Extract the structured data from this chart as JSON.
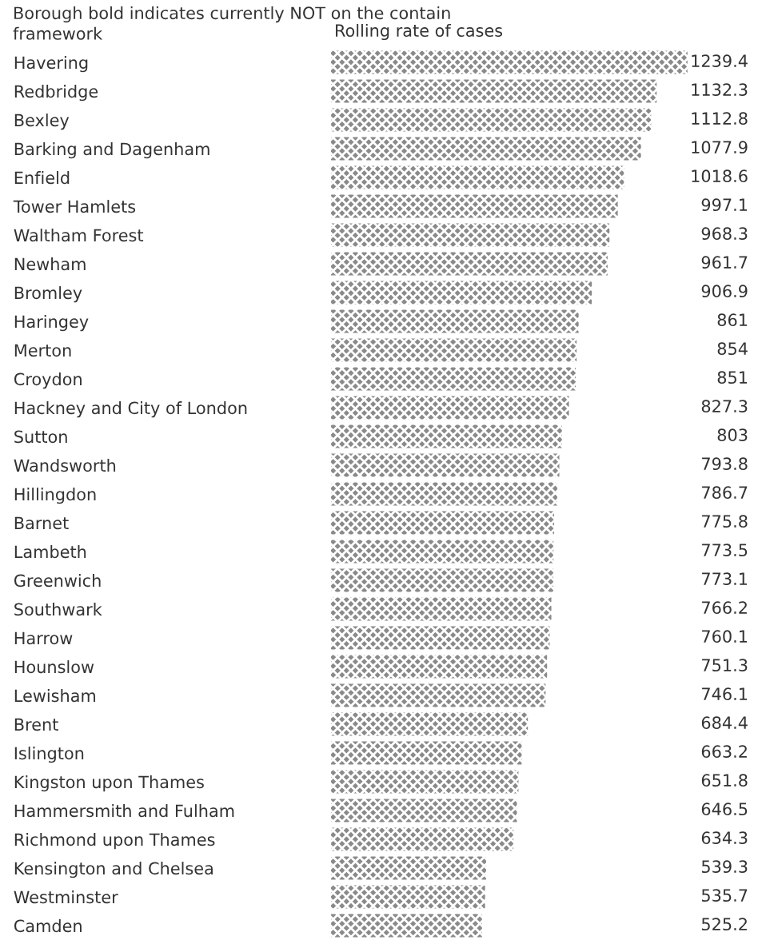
{
  "chart_data": {
    "type": "bar",
    "orientation": "horizontal",
    "ylabel": "Borough bold indicates currently NOT on the contain framework",
    "xlabel": "Rolling rate of cases",
    "data_labels": true,
    "color": "#8a8a8a",
    "categories": [
      "Havering",
      "Redbridge",
      "Bexley",
      "Barking and Dagenham",
      "Enfield",
      "Tower Hamlets",
      "Waltham Forest",
      "Newham",
      "Bromley",
      "Haringey",
      "Merton",
      "Croydon",
      "Hackney and City of London",
      "Sutton",
      "Wandsworth",
      "Hillingdon",
      "Barnet",
      "Lambeth",
      "Greenwich",
      "Southwark",
      "Harrow",
      "Hounslow",
      "Lewisham",
      "Brent",
      "Islington",
      "Kingston upon Thames",
      "Hammersmith and Fulham",
      "Richmond upon Thames",
      "Kensington and Chelsea",
      "Westminster",
      "Camden"
    ],
    "values": [
      1239.4,
      1132.3,
      1112.8,
      1077.9,
      1018.6,
      997.1,
      968.3,
      961.7,
      906.9,
      861,
      854,
      851,
      827.3,
      803,
      793.8,
      786.7,
      775.8,
      773.5,
      773.1,
      766.2,
      760.1,
      751.3,
      746.1,
      684.4,
      663.2,
      651.8,
      646.5,
      634.3,
      539.3,
      535.7,
      525.2
    ]
  }
}
